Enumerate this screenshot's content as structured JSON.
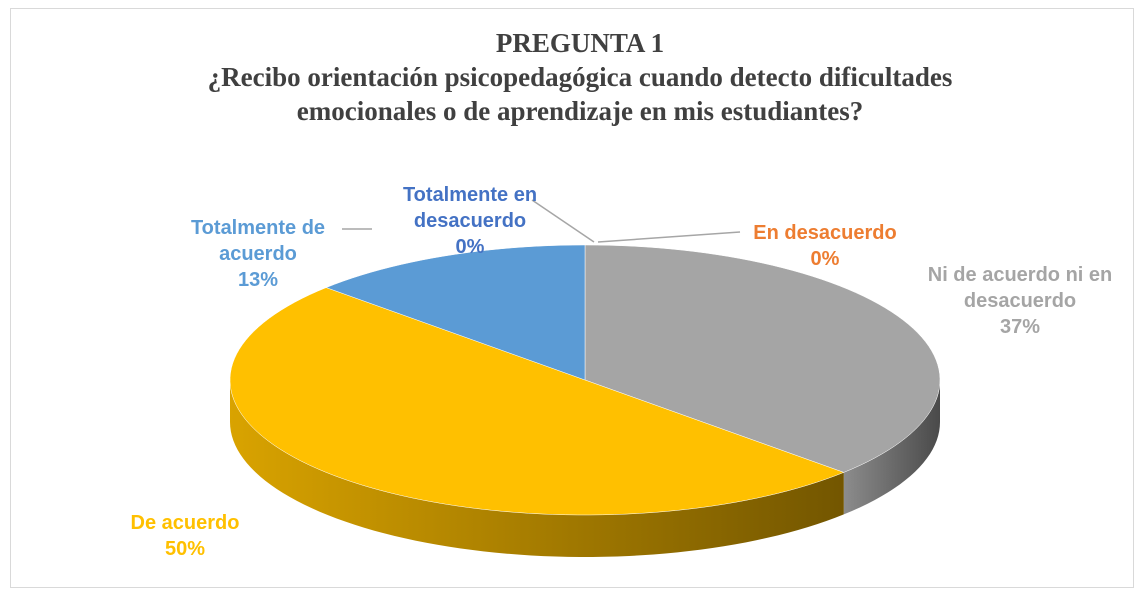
{
  "chart_data": {
    "type": "pie3d",
    "title": "PREGUNTA 1",
    "subtitle": "¿Recibo orientación psicopedagógica cuando detecto dificultades emocionales o de aprendizaje en mis estudiantes?",
    "categories": [
      "Totalmente en desacuerdo",
      "En desacuerdo",
      "Ni de acuerdo ni en desacuerdo",
      "De acuerdo",
      "Totalmente de acuerdo"
    ],
    "values": [
      0,
      0,
      37,
      50,
      13
    ],
    "value_labels": [
      "0%",
      "0%",
      "37%",
      "50%",
      "13%"
    ],
    "colors": [
      "#4472c4",
      "#ed7d31",
      "#a5a5a5",
      "#ffc000",
      "#5b9bd5"
    ]
  }
}
